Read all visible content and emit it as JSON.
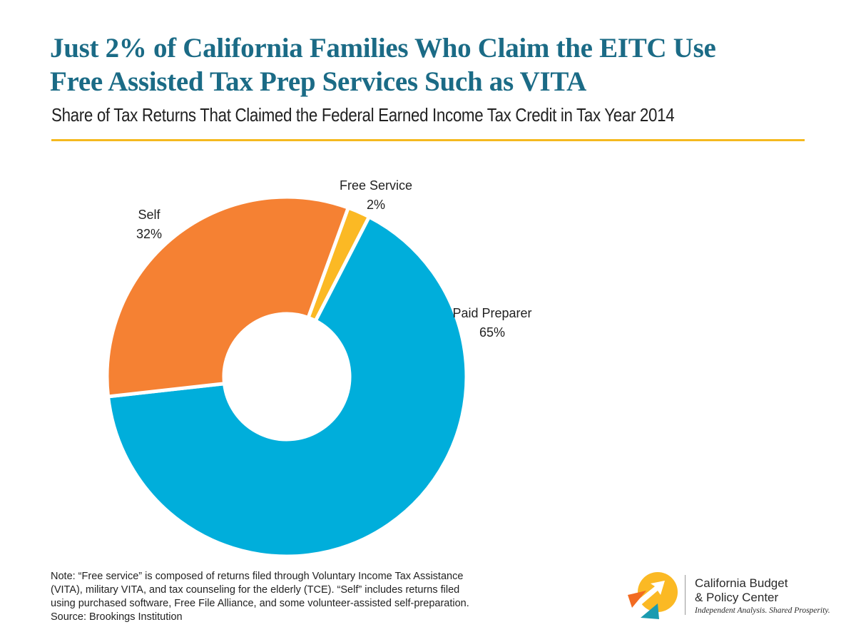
{
  "title_lines": [
    "Just 2% of California Families Who Claim the EITC Use",
    "Free Assisted Tax Prep Services Such as VITA"
  ],
  "subtitle": "Share of Tax Returns That Claimed the Federal Earned Income Tax Credit in Tax Year 2014",
  "chart_data": {
    "type": "pie",
    "style": "donut",
    "slices": [
      {
        "label": "Free Service",
        "value": 2,
        "value_label": "2%",
        "color": "#fbb924"
      },
      {
        "label": "Paid Preparer",
        "value": 65,
        "value_label": "65%",
        "color": "#00aedb"
      },
      {
        "label": "Self",
        "value": 32,
        "value_label": "32%",
        "color": "#f58133"
      }
    ]
  },
  "note_lines": [
    "Note: “Free service” is composed of returns filed through Voluntary Income Tax Assistance",
    "(VITA), military VITA, and tax counseling for the elderly (TCE). “Self” includes returns filed",
    "using purchased software, Free File Alliance, and some volunteer-assisted self-preparation.",
    "Source: Brookings Institution"
  ],
  "branding": {
    "org_name_lines": [
      "California Budget",
      "& Policy Center"
    ],
    "tagline": "Independent Analysis. Shared Prosperity.",
    "logo_icon": "arrow-circle-logo-icon",
    "colors": {
      "accent_rule": "#f5b91f",
      "title": "#1b6b86",
      "logo_yellow": "#fbb924",
      "logo_orange": "#f26b21",
      "logo_teal": "#1a9bb0"
    }
  }
}
